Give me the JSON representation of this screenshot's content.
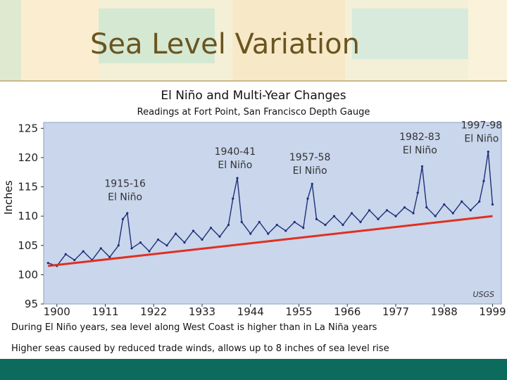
{
  "slide": {
    "title": "Sea Level Variation",
    "notes": [
      "During El Niño years, sea level along West Coast is higher than in La Niña years",
      "Higher seas caused by reduced trade winds, allows up to 8 inches of sea level rise"
    ]
  },
  "colors": {
    "plot_background": "#c9d6ec",
    "series_line": "#1e2f78",
    "trend_line": "#e03020",
    "footer_band": "#0c6b5c",
    "title_color": "#6a5520"
  },
  "chart_data": {
    "type": "line",
    "title": "El Niño and Multi-Year Changes",
    "subtitle": "Readings at Fort Point, San Francisco Depth Gauge",
    "xlabel": "",
    "ylabel": "Inches",
    "xlim": [
      1897,
      2001
    ],
    "ylim": [
      95,
      126
    ],
    "x_ticks": [
      1900,
      1911,
      1922,
      1933,
      1944,
      1955,
      1966,
      1977,
      1988,
      1999
    ],
    "y_ticks": [
      95,
      100,
      105,
      110,
      115,
      120,
      125
    ],
    "grid": false,
    "source_label": "USGS",
    "series": [
      {
        "values": [
          [
            1898,
            102.0
          ],
          [
            1900,
            101.5
          ],
          [
            1902,
            103.5
          ],
          [
            1904,
            102.5
          ],
          [
            1906,
            104.0
          ],
          [
            1908,
            102.5
          ],
          [
            1910,
            104.5
          ],
          [
            1912,
            103.0
          ],
          [
            1914,
            105.0
          ],
          [
            1915,
            109.5
          ],
          [
            1916,
            110.5
          ],
          [
            1917,
            104.5
          ],
          [
            1919,
            105.5
          ],
          [
            1921,
            104.0
          ],
          [
            1923,
            106.0
          ],
          [
            1925,
            105.0
          ],
          [
            1927,
            107.0
          ],
          [
            1929,
            105.5
          ],
          [
            1931,
            107.5
          ],
          [
            1933,
            106.0
          ],
          [
            1935,
            108.0
          ],
          [
            1937,
            106.5
          ],
          [
            1939,
            108.5
          ],
          [
            1940,
            113.0
          ],
          [
            1941,
            116.5
          ],
          [
            1942,
            109.0
          ],
          [
            1944,
            107.0
          ],
          [
            1946,
            109.0
          ],
          [
            1948,
            107.0
          ],
          [
            1950,
            108.5
          ],
          [
            1952,
            107.5
          ],
          [
            1954,
            109.0
          ],
          [
            1956,
            108.0
          ],
          [
            1957,
            113.0
          ],
          [
            1958,
            115.5
          ],
          [
            1959,
            109.5
          ],
          [
            1961,
            108.5
          ],
          [
            1963,
            110.0
          ],
          [
            1965,
            108.5
          ],
          [
            1967,
            110.5
          ],
          [
            1969,
            109.0
          ],
          [
            1971,
            111.0
          ],
          [
            1973,
            109.5
          ],
          [
            1975,
            111.0
          ],
          [
            1977,
            110.0
          ],
          [
            1979,
            111.5
          ],
          [
            1981,
            110.5
          ],
          [
            1982,
            114.0
          ],
          [
            1983,
            118.5
          ],
          [
            1984,
            111.5
          ],
          [
            1986,
            110.0
          ],
          [
            1988,
            112.0
          ],
          [
            1990,
            110.5
          ],
          [
            1992,
            112.5
          ],
          [
            1994,
            111.0
          ],
          [
            1996,
            112.5
          ],
          [
            1997,
            116.0
          ],
          [
            1998,
            121.0
          ],
          [
            1999,
            112.0
          ]
        ]
      },
      {
        "values": [
          [
            1898,
            101.5
          ],
          [
            1999,
            110.0
          ]
        ]
      }
    ],
    "annotations": [
      {
        "label": [
          "1915-16",
          "El Niño"
        ],
        "x": 1915.5,
        "y": 115.0
      },
      {
        "label": [
          "1940-41",
          "El Niño"
        ],
        "x": 1940.5,
        "y": 120.5
      },
      {
        "label": [
          "1957-58",
          "El Niño"
        ],
        "x": 1957.5,
        "y": 119.5
      },
      {
        "label": [
          "1982-83",
          "El Niño"
        ],
        "x": 1982.5,
        "y": 123.0
      },
      {
        "label": [
          "1997-98",
          "El Niño"
        ],
        "x": 1996.5,
        "y": 125.0
      }
    ]
  }
}
